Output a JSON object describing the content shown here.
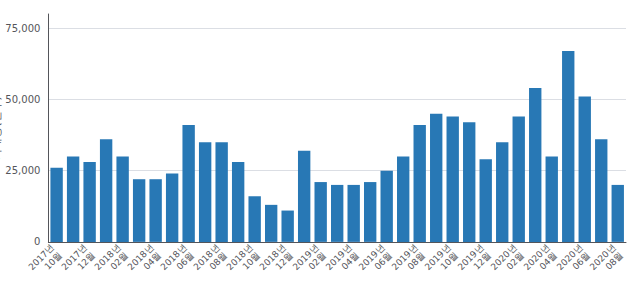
{
  "chart_data": {
    "type": "bar",
    "ylabel": "거래량(건수)",
    "categories": [
      "2017년\n10월",
      null,
      "2017년\n12월",
      null,
      "2018년\n02월",
      null,
      "2018년\n04월",
      null,
      "2018년\n06월",
      null,
      "2018년\n08월",
      null,
      "2018년\n10월",
      null,
      "2018년\n12월",
      null,
      "2019년\n02월",
      null,
      "2019년\n04월",
      null,
      "2019년\n06월",
      null,
      "2019년\n08월",
      null,
      "2019년\n10월",
      null,
      "2019년\n12월",
      null,
      "2020년\n02월",
      null,
      "2020년\n04월",
      null,
      "2020년\n06월",
      null,
      "2020년\n08월"
    ],
    "values": [
      26000,
      30000,
      28000,
      36000,
      30000,
      22000,
      22000,
      24000,
      41000,
      35000,
      35000,
      28000,
      16000,
      13000,
      11000,
      32000,
      21000,
      20000,
      20000,
      21000,
      25000,
      30000,
      41000,
      45000,
      44000,
      42000,
      29000,
      35000,
      44000,
      54000,
      30000,
      67000,
      51000,
      36000,
      20000
    ],
    "color": "#2878b5",
    "ylim": [
      0,
      80000
    ],
    "yticks": [
      0,
      {
        "value": 25000,
        "label": "25,000"
      },
      {
        "value": 50000,
        "label": "50,000"
      },
      {
        "value": 75000,
        "label": "75,000"
      }
    ],
    "grid": true
  }
}
